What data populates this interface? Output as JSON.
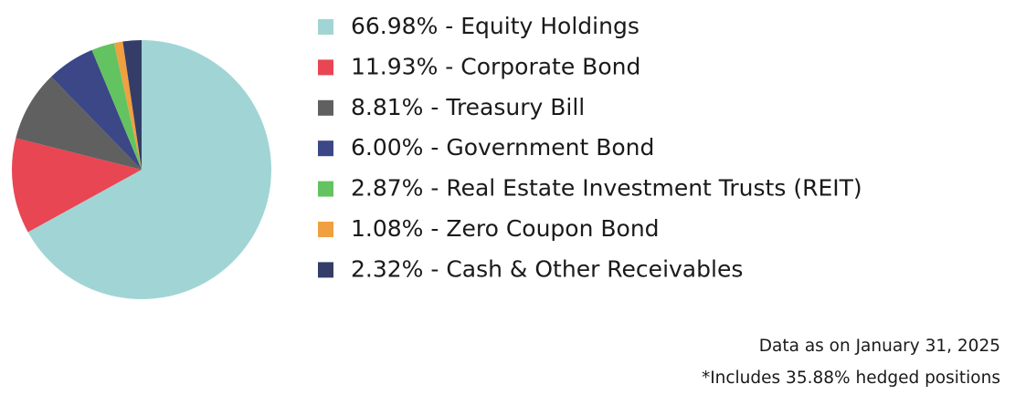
{
  "chart_data": {
    "type": "pie",
    "categories": [
      "Equity Holdings",
      "Corporate Bond",
      "Treasury Bill",
      "Government Bond",
      "Real Estate Investment Trusts (REIT)",
      "Zero Coupon Bond",
      "Cash & Other Receivables"
    ],
    "values": [
      66.98,
      11.93,
      8.81,
      6.0,
      2.87,
      1.08,
      2.32
    ],
    "value_labels": [
      "66.98%",
      "11.93%",
      "8.81%",
      "6.00%",
      "2.87%",
      "1.08%",
      "2.32%"
    ],
    "label_separator": " - ",
    "colors": [
      "#a1d5d5",
      "#e84653",
      "#606060",
      "#3b4787",
      "#63c360",
      "#f0a040",
      "#343d68"
    ],
    "annotations": [
      "Data as on January 31, 2025",
      "*Includes 35.88% hedged positions"
    ]
  }
}
